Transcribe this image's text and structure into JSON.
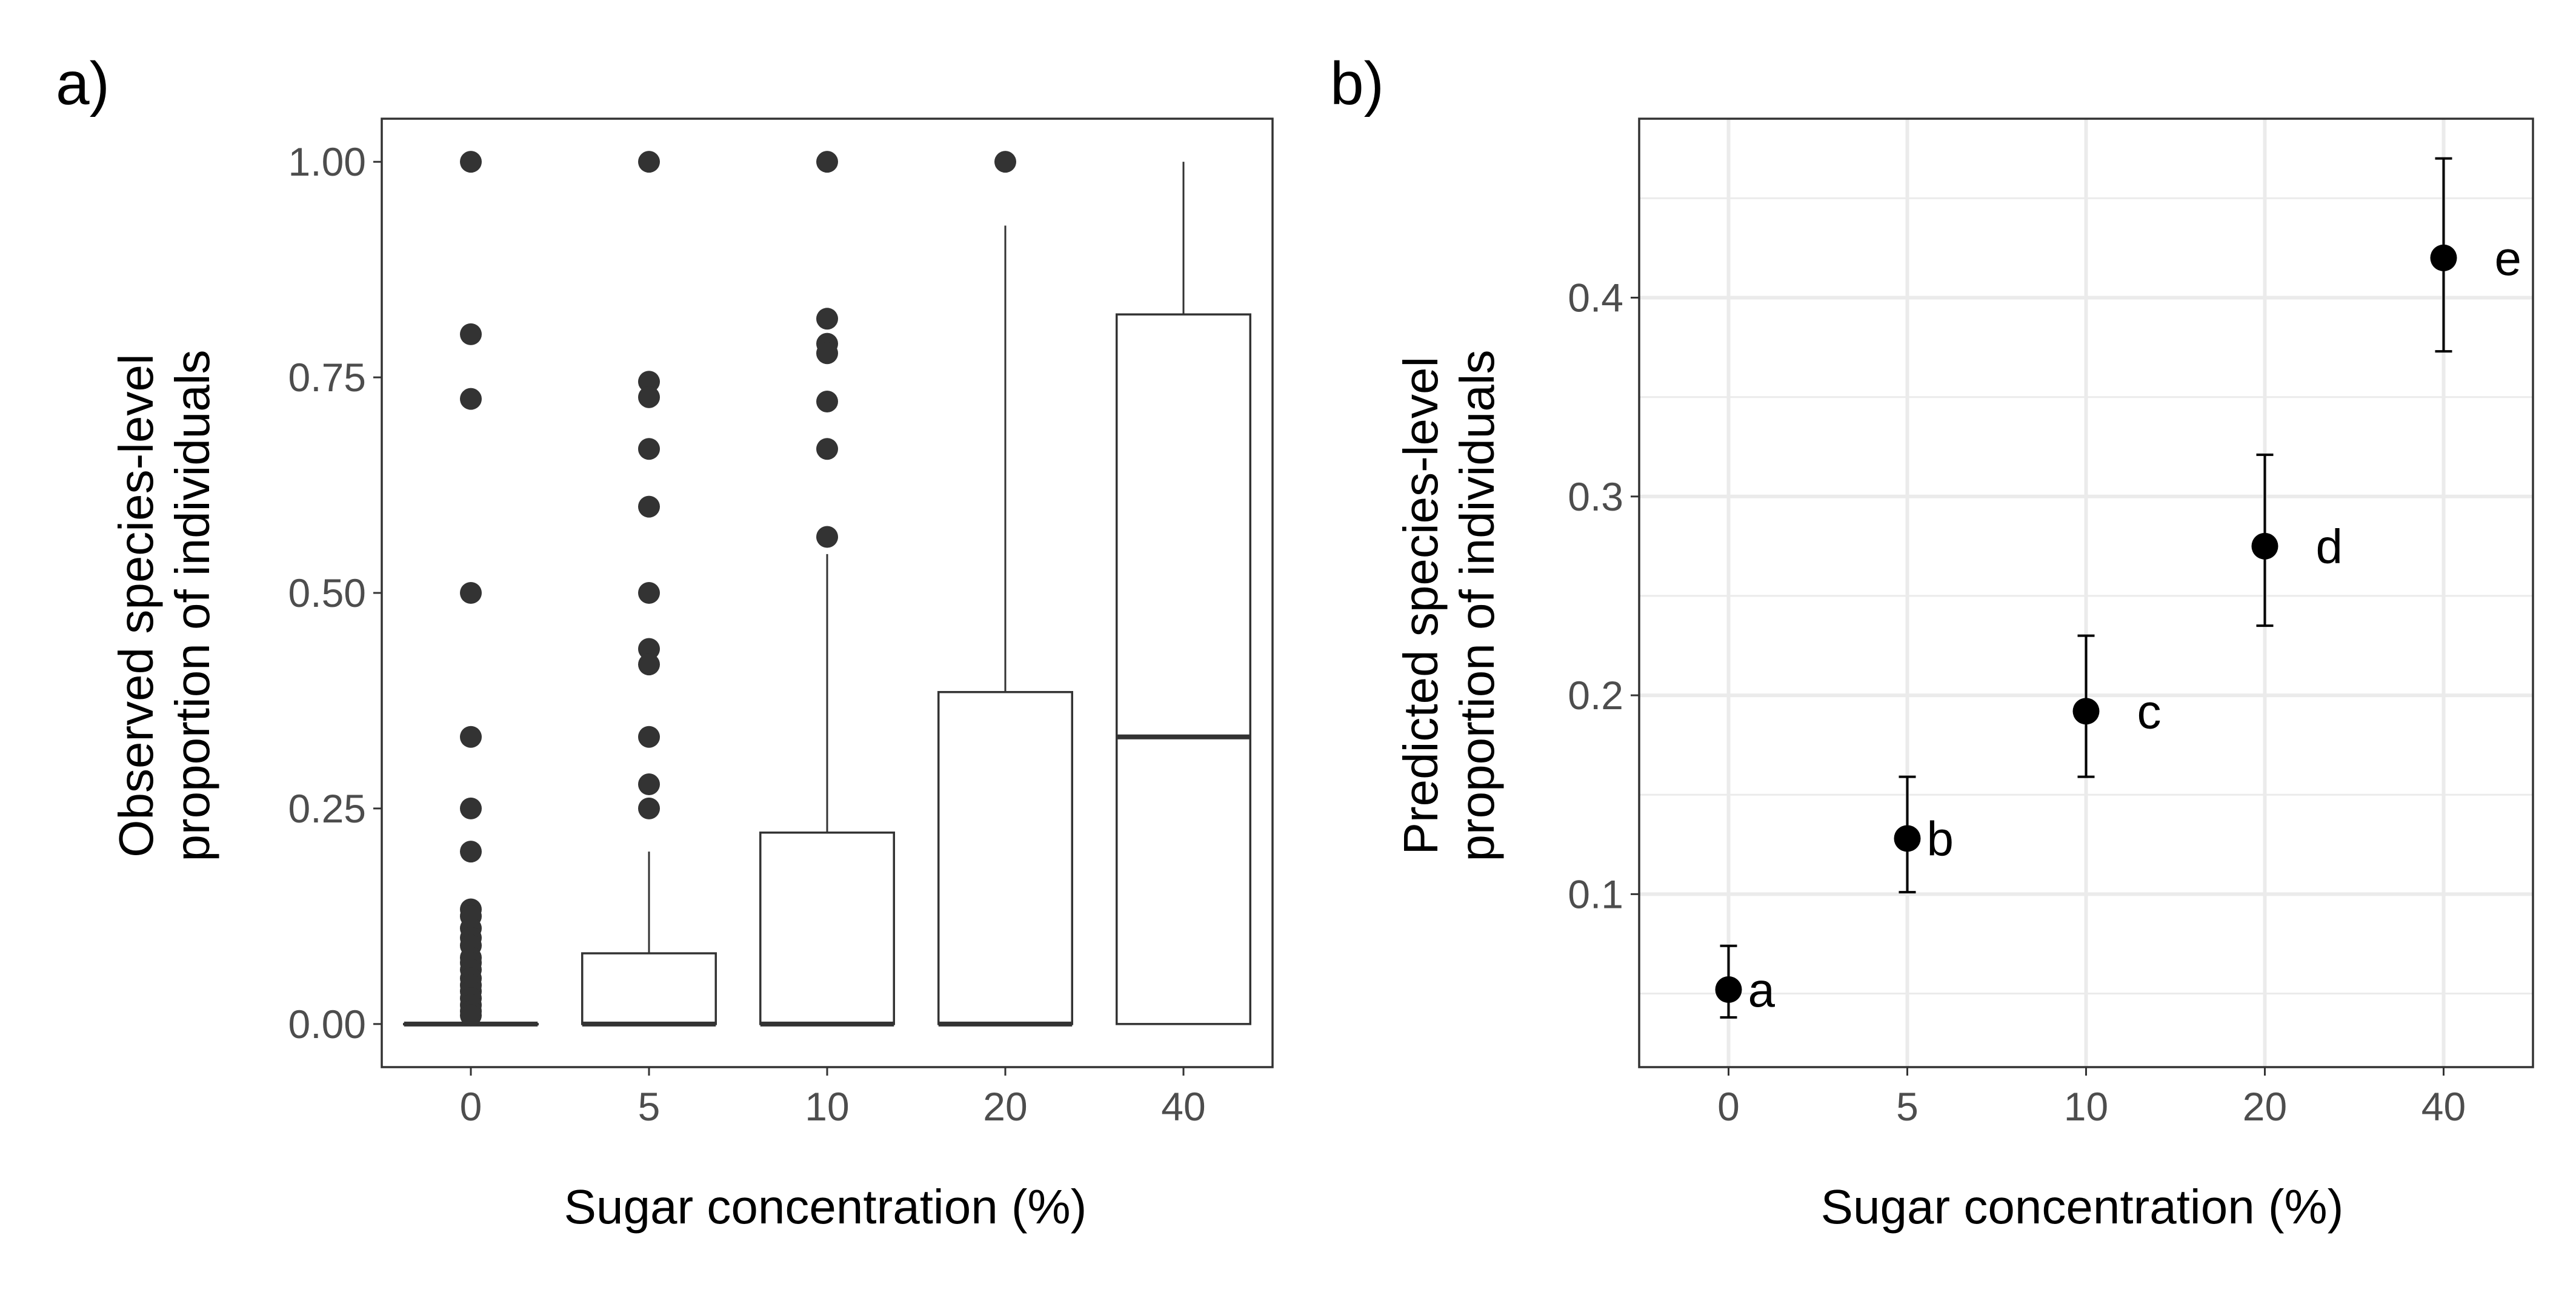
{
  "chart_data": [
    {
      "panel_label": "a)",
      "type": "box",
      "xlabel": "Sugar concentration (%)",
      "ylabel_lines": [
        "Observed species-level",
        "proportion of individuals"
      ],
      "categories": [
        "0",
        "5",
        "10",
        "20",
        "40"
      ],
      "ylim": [
        -0.05,
        1.05
      ],
      "yticks": [
        0.0,
        0.25,
        0.5,
        0.75,
        1.0
      ],
      "ytick_labels": [
        "0.00",
        "0.25",
        "0.50",
        "0.75",
        "1.00"
      ],
      "grid": false,
      "boxes": [
        {
          "category": "0",
          "min": 0.0,
          "q1": 0.0,
          "median": 0.0,
          "q3": 0.0,
          "max": 0.0,
          "outliers": [
            1.0,
            0.8,
            0.725,
            0.5,
            0.333,
            0.25,
            0.2,
            0.133,
            0.125,
            0.111,
            0.1,
            0.091,
            0.077,
            0.071,
            0.063,
            0.053,
            0.045,
            0.038,
            0.03,
            0.022,
            0.015,
            0.01
          ]
        },
        {
          "category": "5",
          "min": 0.0,
          "q1": 0.0,
          "median": 0.0,
          "q3": 0.082,
          "max": 0.2,
          "outliers": [
            1.0,
            0.745,
            0.727,
            0.667,
            0.6,
            0.5,
            0.435,
            0.417,
            0.333,
            0.278,
            0.25
          ]
        },
        {
          "category": "10",
          "min": 0.0,
          "q1": 0.0,
          "median": 0.0,
          "q3": 0.222,
          "max": 0.545,
          "outliers": [
            1.0,
            0.818,
            0.789,
            0.778,
            0.722,
            0.667,
            0.565
          ]
        },
        {
          "category": "20",
          "min": 0.0,
          "q1": 0.0,
          "median": 0.0,
          "q3": 0.385,
          "max": 0.926,
          "outliers": [
            1.0
          ]
        },
        {
          "category": "40",
          "min": 0.0,
          "q1": 0.0,
          "median": 0.333,
          "q3": 0.823,
          "max": 1.0,
          "outliers": []
        }
      ]
    },
    {
      "panel_label": "b)",
      "type": "scatter",
      "xlabel": "Sugar concentration (%)",
      "ylabel_lines": [
        "Predicted species-level",
        "proportion of individuals"
      ],
      "categories": [
        "0",
        "5",
        "10",
        "20",
        "40"
      ],
      "ylim": [
        0.013,
        0.49
      ],
      "yticks": [
        0.1,
        0.2,
        0.3,
        0.4
      ],
      "ytick_labels": [
        "0.1",
        "0.2",
        "0.3",
        "0.4"
      ],
      "grid": true,
      "points": [
        {
          "category": "0",
          "y": 0.052,
          "lower": 0.038,
          "upper": 0.074,
          "label": "a"
        },
        {
          "category": "5",
          "y": 0.128,
          "lower": 0.101,
          "upper": 0.159,
          "label": "b"
        },
        {
          "category": "10",
          "y": 0.192,
          "lower": 0.159,
          "upper": 0.23,
          "label": "c"
        },
        {
          "category": "20",
          "y": 0.275,
          "lower": 0.235,
          "upper": 0.321,
          "label": "d"
        },
        {
          "category": "40",
          "y": 0.42,
          "lower": 0.373,
          "upper": 0.47,
          "label": "e"
        }
      ]
    }
  ]
}
